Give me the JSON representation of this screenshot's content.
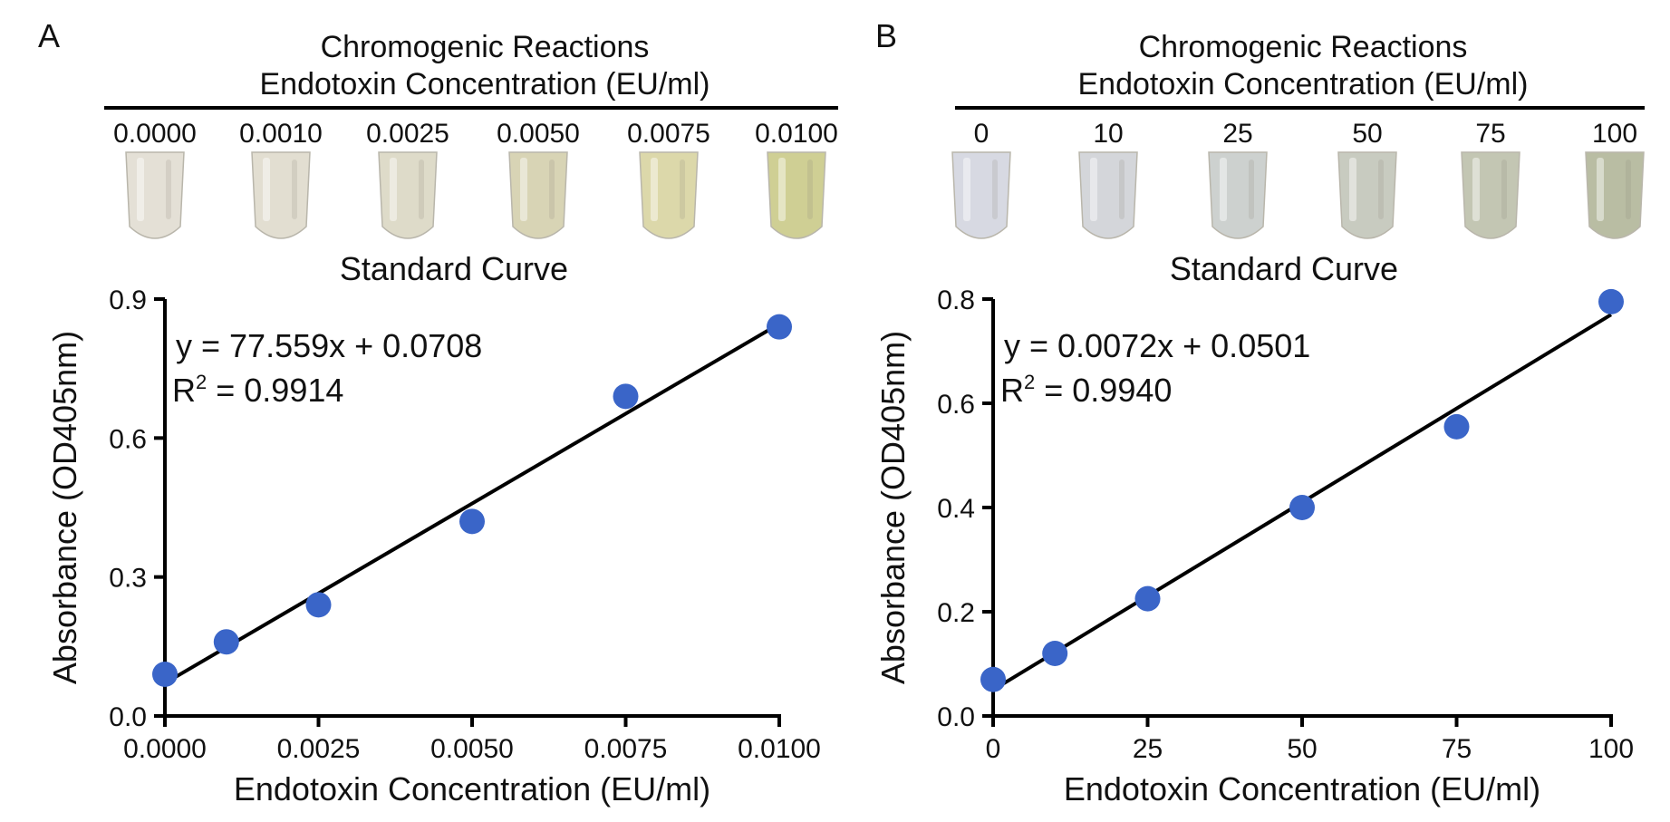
{
  "panels": [
    {
      "label": "A",
      "reactions_title": "Chromogenic Reactions",
      "reactions_subtitle": "Endotoxin Concentration (EU/ml)",
      "tube_labels": [
        "0.0000",
        "0.0010",
        "0.0025",
        "0.0050",
        "0.0075",
        "0.0100"
      ],
      "tube_colors": [
        "#e4e0d6",
        "#e2ded1",
        "#dedbc9",
        "#d8d4b5",
        "#dcd8aa",
        "#cfcf94"
      ],
      "equation": "y = 77.559x + 0.0708",
      "r2_prefix": "R",
      "r2_sup": "2",
      "r2_value": " = 0.9914"
    },
    {
      "label": "B",
      "reactions_title": "Chromogenic Reactions",
      "reactions_subtitle": "Endotoxin Concentration (EU/ml)",
      "tube_labels": [
        "0",
        "10",
        "25",
        "50",
        "75",
        "100"
      ],
      "tube_colors": [
        "#d7d9e2",
        "#d4d6da",
        "#cdd1cf",
        "#c8cbc0",
        "#c3c6b3",
        "#b9bda3"
      ],
      "equation": "y = 0.0072x + 0.0501",
      "r2_prefix": "R",
      "r2_sup": "2",
      "r2_value": " = 0.9940"
    }
  ],
  "colors": {
    "points": "#3a65c8",
    "line": "#000000",
    "axis": "#000000"
  },
  "chart_data": [
    {
      "type": "scatter",
      "title": "Standard Curve",
      "xlabel": "Endotoxin Concentration (EU/ml)",
      "ylabel": "Absorbance (OD405nm)",
      "xlim": [
        0,
        0.01
      ],
      "ylim": [
        0,
        0.9
      ],
      "xticks": [
        0,
        0.0025,
        0.005,
        0.0075,
        0.01
      ],
      "xtick_labels": [
        "0.0000",
        "0.0025",
        "0.0050",
        "0.0075",
        "0.0100"
      ],
      "yticks": [
        0,
        0.3,
        0.6,
        0.9
      ],
      "ytick_labels": [
        "0.0",
        "0.3",
        "0.6",
        "0.9"
      ],
      "x": [
        0,
        0.001,
        0.0025,
        0.005,
        0.0075,
        0.01
      ],
      "y": [
        0.09,
        0.16,
        0.24,
        0.42,
        0.69,
        0.84
      ],
      "fit": {
        "slope": 77.559,
        "intercept": 0.0708
      },
      "grid": false
    },
    {
      "type": "scatter",
      "title": "Standard Curve",
      "xlabel": "Endotoxin Concentration (EU/ml)",
      "ylabel": "Absorbance (OD405nm)",
      "xlim": [
        0,
        100
      ],
      "ylim": [
        0,
        0.8
      ],
      "xticks": [
        0,
        25,
        50,
        75,
        100
      ],
      "xtick_labels": [
        "0",
        "25",
        "50",
        "75",
        "100"
      ],
      "yticks": [
        0,
        0.2,
        0.4,
        0.6,
        0.8
      ],
      "ytick_labels": [
        "0.0",
        "0.2",
        "0.4",
        "0.6",
        "0.8"
      ],
      "x": [
        0,
        10,
        25,
        50,
        75,
        100
      ],
      "y": [
        0.07,
        0.12,
        0.225,
        0.4,
        0.555,
        0.795
      ],
      "fit": {
        "slope": 0.0072,
        "intercept": 0.0501
      },
      "grid": false
    }
  ]
}
